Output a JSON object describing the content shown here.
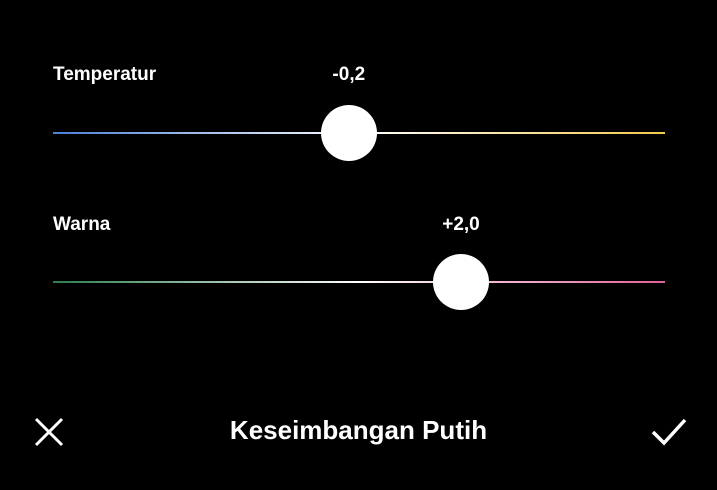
{
  "sliders": [
    {
      "label": "Temperatur",
      "value_text": "-0,2",
      "value": -0.2,
      "min": -6,
      "max": 6,
      "gradient": [
        "#4a7fd6",
        "#ffffff",
        "#f2c94c"
      ]
    },
    {
      "label": "Warna",
      "value_text": "+2,0",
      "value": 2.0,
      "min": -6,
      "max": 6,
      "gradient": [
        "#2e7d4a",
        "#ffffff",
        "#e0609a"
      ]
    }
  ],
  "footer": {
    "title": "Keseimbangan Putih",
    "cancel_icon": "close-icon",
    "confirm_icon": "check-icon"
  }
}
